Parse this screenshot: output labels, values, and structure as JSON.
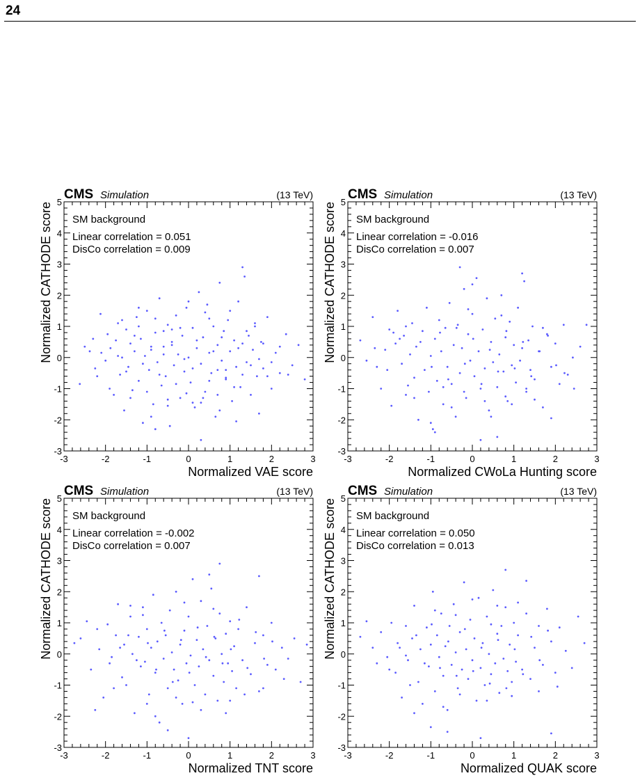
{
  "page_number": "24",
  "chart_data": [
    {
      "type": "scatter",
      "experiment": "CMS",
      "label": "Simulation",
      "energy": "(13 TeV)",
      "sample": "SM background",
      "annotations": [
        "Linear correlation = 0.051",
        "DisCo correlation = 0.009"
      ],
      "xlabel": "Normalized VAE score",
      "ylabel": "Normalized CATHODE score",
      "xlim": [
        -3,
        3
      ],
      "ylim": [
        -3,
        5
      ],
      "x_ticks": [
        "-3",
        "-2",
        "-1",
        "0",
        "1",
        "2",
        "3"
      ],
      "y_ticks": [
        "-3",
        "-2",
        "-1",
        "0",
        "1",
        "2",
        "3",
        "4",
        "5"
      ],
      "marker_color": "#5a5aff",
      "x": [
        -2.62,
        -2.5,
        -2.38,
        -2.25,
        -2.12,
        -2.0,
        -1.95,
        -1.88,
        -1.8,
        -1.75,
        -1.7,
        -1.65,
        -1.6,
        -1.55,
        -1.5,
        -1.45,
        -1.4,
        -1.35,
        -1.3,
        -1.25,
        -1.2,
        -1.15,
        -1.1,
        -1.05,
        -1.0,
        -0.95,
        -0.9,
        -0.85,
        -0.8,
        -0.75,
        -0.7,
        -0.65,
        -0.6,
        -0.55,
        -0.5,
        -0.45,
        -0.4,
        -0.35,
        -0.3,
        -0.25,
        -0.2,
        -0.15,
        -0.1,
        -0.05,
        0.0,
        0.05,
        0.1,
        0.15,
        0.2,
        0.25,
        0.3,
        0.35,
        0.4,
        0.45,
        0.5,
        0.55,
        0.6,
        0.65,
        0.7,
        0.75,
        0.8,
        0.85,
        0.9,
        0.95,
        1.0,
        1.05,
        1.1,
        1.15,
        1.2,
        1.25,
        1.3,
        1.35,
        1.4,
        1.45,
        1.5,
        1.55,
        1.6,
        1.65,
        1.7,
        1.75,
        1.8,
        1.9,
        2.0,
        2.1,
        2.2,
        2.35,
        2.5,
        2.65,
        2.8,
        -1.2,
        -0.8,
        -0.4,
        0.1,
        0.5,
        0.9,
        1.3,
        -0.6,
        0.3,
        0.7
      ],
      "y": [
        -0.85,
        0.35,
        0.2,
        -0.35,
        1.4,
        -0.1,
        0.75,
        0.3,
        -1.2,
        0.55,
        1.1,
        -0.55,
        0.0,
        -1.7,
        0.9,
        -0.3,
        0.45,
        -1.05,
        0.2,
        1.3,
        -0.75,
        0.6,
        -2.1,
        0.05,
        1.5,
        -0.4,
        0.25,
        -1.5,
        0.8,
        -0.15,
        1.9,
        -0.9,
        0.35,
        -0.6,
        1.05,
        -2.2,
        0.5,
        -0.25,
        1.35,
        0.1,
        -1.3,
        0.7,
        -0.45,
        1.6,
        0.0,
        -0.8,
        0.95,
        -1.6,
        0.3,
        2.1,
        -0.2,
        0.65,
        -1.1,
        1.7,
        0.15,
        -0.5,
        1.0,
        -1.9,
        0.4,
        2.4,
        -0.1,
        0.85,
        -0.7,
        1.2,
        0.2,
        -1.4,
        0.55,
        -0.3,
        1.8,
        -0.95,
        0.45,
        2.6,
        -0.15,
        0.7,
        -1.2,
        0.25,
        1.1,
        -0.6,
        -1.8,
        0.5,
        -0.35,
        1.3,
        -1.0,
        0.15,
        -0.5,
        0.75,
        -0.25,
        0.4,
        -0.7,
        1.6,
        -2.3,
        0.9,
        -1.45,
        1.25,
        -0.65,
        2.9,
        0.1,
        -2.65,
        -0.4
      ],
      "x_more": [
        -2.3,
        -2.2,
        -2.1,
        -1.9,
        -1.7,
        -1.6,
        -1.5,
        -1.4,
        -1.3,
        -1.2,
        -1.1,
        -1.0,
        -0.9,
        -0.8,
        -0.7,
        -0.6,
        -0.5,
        -0.4,
        -0.3,
        -0.2,
        -0.1,
        0.0,
        0.1,
        0.2,
        0.3,
        0.4,
        0.5,
        0.6,
        0.7,
        0.8,
        0.9,
        1.0,
        1.1,
        1.2,
        1.3,
        1.4,
        1.5,
        1.6,
        1.7,
        1.8,
        1.9,
        2.0,
        2.2,
        2.4,
        -0.9,
        -0.5,
        -0.05,
        0.35,
        0.75,
        1.15
      ],
      "y_more": [
        0.6,
        -0.6,
        0.15,
        -1.0,
        0.05,
        1.2,
        -0.45,
        -1.3,
        0.7,
        1.0,
        -0.2,
        -1.1,
        0.35,
        1.25,
        -0.55,
        0.85,
        -1.35,
        0.4,
        -0.85,
        0.95,
        -0.05,
        1.8,
        -0.35,
        0.55,
        -1.45,
        1.45,
        -0.75,
        0.2,
        -1.2,
        0.65,
        -0.4,
        1.5,
        -0.95,
        0.3,
        -0.55,
        0.85,
        -0.25,
        1.0,
        -0.05,
        0.45,
        -0.6,
        -0.15,
        0.35,
        -0.55,
        -1.9,
        -1.55,
        -1.15,
        -1.3,
        -1.7,
        -2.05
      ]
    },
    {
      "type": "scatter",
      "experiment": "CMS",
      "label": "Simulation",
      "energy": "(13 TeV)",
      "sample": "SM background",
      "annotations": [
        "Linear correlation = -0.016",
        "DisCo correlation = 0.007"
      ],
      "xlabel": "Normalized CWoLa Hunting score",
      "ylabel": "Normalized CATHODE score",
      "xlim": [
        -3,
        3
      ],
      "ylim": [
        -3,
        5
      ],
      "x_ticks": [
        "-3",
        "-2",
        "-1",
        "0",
        "1",
        "2",
        "3"
      ],
      "y_ticks": [
        "-3",
        "-2",
        "-1",
        "0",
        "1",
        "2",
        "3",
        "4",
        "5"
      ],
      "marker_color": "#5a5aff",
      "x": [
        -2.7,
        -2.55,
        -2.4,
        -2.3,
        -2.2,
        -2.1,
        -2.0,
        -1.95,
        -1.85,
        -1.8,
        -1.7,
        -1.65,
        -1.6,
        -1.5,
        -1.45,
        -1.4,
        -1.35,
        -1.3,
        -1.2,
        -1.15,
        -1.1,
        -1.05,
        -1.0,
        -0.95,
        -0.9,
        -0.85,
        -0.8,
        -0.75,
        -0.7,
        -0.65,
        -0.6,
        -0.55,
        -0.5,
        -0.45,
        -0.4,
        -0.35,
        -0.3,
        -0.25,
        -0.2,
        -0.15,
        -0.1,
        -0.05,
        0.0,
        0.05,
        0.1,
        0.15,
        0.2,
        0.25,
        0.3,
        0.35,
        0.4,
        0.45,
        0.5,
        0.55,
        0.6,
        0.65,
        0.7,
        0.75,
        0.8,
        0.85,
        0.9,
        0.95,
        1.0,
        1.05,
        1.1,
        1.15,
        1.2,
        1.25,
        1.3,
        1.35,
        1.4,
        1.45,
        1.5,
        1.6,
        1.7,
        1.8,
        1.9,
        2.0,
        2.1,
        2.2,
        2.3,
        2.45,
        2.6,
        2.75,
        -0.3,
        0.0,
        0.2,
        -0.9,
        0.6,
        1.2
      ],
      "y": [
        0.55,
        -0.1,
        1.3,
        -0.3,
        -1.0,
        0.25,
        0.9,
        -1.55,
        0.45,
        1.5,
        -0.2,
        0.7,
        -1.2,
        0.1,
        1.1,
        -0.65,
        0.35,
        -2.0,
        0.85,
        -0.4,
        1.6,
        -1.1,
        0.05,
        -2.3,
        0.6,
        -0.75,
        1.2,
        0.2,
        -1.5,
        0.95,
        -0.3,
        1.75,
        -0.85,
        0.4,
        -1.9,
        1.05,
        -0.5,
        0.3,
        2.2,
        -1.3,
        0.75,
        -0.1,
        1.4,
        -0.6,
        2.55,
        0.2,
        -1.0,
        0.9,
        -0.35,
        1.9,
        -1.7,
        0.5,
        -0.15,
        1.25,
        -0.95,
        0.1,
        2.0,
        -0.45,
        0.65,
        -1.4,
        1.15,
        -0.25,
        0.4,
        -0.8,
        1.6,
        -0.1,
        0.3,
        2.45,
        -1.1,
        0.55,
        -0.4,
        1.0,
        -0.7,
        0.2,
        -1.6,
        0.75,
        -0.3,
        0.45,
        -0.85,
        1.05,
        -0.55,
        -1.0,
        0.35,
        1.05,
        2.9,
        2.35,
        -2.65,
        -2.4,
        -2.55,
        2.7
      ],
      "x_more": [
        -2.35,
        -2.05,
        -1.75,
        -1.55,
        -1.25,
        -0.98,
        -0.78,
        -0.58,
        -0.38,
        -0.18,
        0.02,
        0.22,
        0.42,
        0.62,
        0.82,
        1.02,
        1.22,
        1.42,
        1.62,
        1.82,
        2.02,
        2.22,
        2.42,
        -1.9,
        -1.4,
        -0.7,
        -0.2,
        0.3,
        0.8,
        1.3,
        1.9,
        -1.0,
        -0.5,
        0.45,
        0.95,
        1.5,
        -1.6,
        -0.1,
        0.7,
        1.7
      ],
      "y_more": [
        0.3,
        -0.4,
        0.6,
        -0.9,
        0.5,
        -0.3,
        0.8,
        -0.7,
        0.95,
        -0.2,
        0.6,
        -0.85,
        0.25,
        -0.45,
        0.85,
        -0.35,
        0.5,
        -0.6,
        0.2,
        0.7,
        -0.25,
        -0.5,
        0.0,
        0.8,
        -1.3,
        -0.95,
        -1.1,
        -1.4,
        -1.25,
        -1.0,
        -1.95,
        -2.1,
        -1.6,
        -1.9,
        -1.5,
        -1.35,
        1.0,
        1.55,
        1.35,
        0.95
      ]
    },
    {
      "type": "scatter",
      "experiment": "CMS",
      "label": "Simulation",
      "energy": "(13 TeV)",
      "sample": "SM background",
      "annotations": [
        "Linear correlation = -0.002",
        "DisCo correlation = 0.007"
      ],
      "xlabel": "Normalized TNT score",
      "ylabel": "Normalized CATHODE score",
      "xlim": [
        -3,
        3
      ],
      "ylim": [
        -3,
        5
      ],
      "x_ticks": [
        "-3",
        "-2",
        "-1",
        "0",
        "1",
        "2",
        "3"
      ],
      "y_ticks": [
        "-3",
        "-2",
        "-1",
        "0",
        "1",
        "2",
        "3",
        "4",
        "5"
      ],
      "marker_color": "#5a5aff",
      "x": [
        -2.75,
        -2.6,
        -2.45,
        -2.35,
        -2.25,
        -2.15,
        -2.05,
        -1.95,
        -1.85,
        -1.75,
        -1.7,
        -1.6,
        -1.55,
        -1.5,
        -1.4,
        -1.35,
        -1.3,
        -1.2,
        -1.15,
        -1.1,
        -1.05,
        -1.0,
        -0.95,
        -0.9,
        -0.85,
        -0.8,
        -0.75,
        -0.7,
        -0.65,
        -0.6,
        -0.55,
        -0.5,
        -0.45,
        -0.4,
        -0.35,
        -0.3,
        -0.25,
        -0.2,
        -0.15,
        -0.1,
        -0.05,
        0.0,
        0.05,
        0.1,
        0.15,
        0.2,
        0.25,
        0.3,
        0.35,
        0.4,
        0.45,
        0.5,
        0.55,
        0.6,
        0.65,
        0.7,
        0.75,
        0.8,
        0.85,
        0.9,
        0.95,
        1.0,
        1.05,
        1.1,
        1.15,
        1.2,
        1.3,
        1.4,
        1.5,
        1.6,
        1.7,
        1.8,
        1.9,
        2.0,
        2.1,
        2.25,
        2.4,
        2.55,
        2.7,
        2.85,
        -0.5,
        0.0,
        0.5,
        0.75,
        -1.4,
        1.7
      ],
      "y": [
        0.35,
        0.5,
        1.05,
        -0.5,
        -1.8,
        0.15,
        -1.4,
        0.95,
        -0.1,
        0.6,
        1.6,
        -0.75,
        0.3,
        -1.0,
        1.2,
        0.0,
        -1.9,
        0.55,
        -0.4,
        1.5,
        -0.25,
        0.8,
        -1.3,
        0.2,
        1.9,
        -0.6,
        0.4,
        -2.2,
        1.0,
        -0.15,
        0.6,
        -1.1,
        1.4,
        0.05,
        -0.5,
        2.0,
        -0.85,
        0.3,
        -1.6,
        0.75,
        -0.3,
        1.2,
        -0.05,
        2.4,
        -1.0,
        0.45,
        -0.4,
        1.7,
        0.15,
        -1.3,
        0.9,
        -0.2,
        2.1,
        -0.7,
        0.5,
        -1.5,
        1.3,
        0.0,
        -0.9,
        0.65,
        -0.3,
        1.05,
        -0.55,
        0.25,
        -1.1,
        0.8,
        -0.2,
        1.5,
        -0.65,
        0.35,
        -1.2,
        0.6,
        -0.35,
        1.0,
        -0.5,
        0.2,
        -0.15,
        0.5,
        -0.9,
        0.3,
        -2.45,
        -2.7,
        2.55,
        2.9,
        1.55,
        2.5
      ],
      "x_more": [
        -2.2,
        -1.9,
        -1.65,
        -1.45,
        -1.25,
        -0.98,
        -0.78,
        -0.58,
        -0.38,
        -0.18,
        0.02,
        0.22,
        0.42,
        0.62,
        0.82,
        1.02,
        1.22,
        1.42,
        1.62,
        1.82,
        2.02,
        2.3,
        -1.8,
        -1.0,
        -0.3,
        0.3,
        1.0,
        1.8,
        -0.8,
        0.1,
        0.9,
        1.35,
        -1.1,
        -0.1,
        0.6
      ],
      "y_more": [
        0.8,
        -0.3,
        0.2,
        0.6,
        -0.2,
        0.35,
        -0.5,
        0.75,
        -0.9,
        0.45,
        -0.6,
        0.85,
        -0.1,
        0.55,
        -0.3,
        0.15,
        1.1,
        -0.45,
        0.7,
        -0.15,
        0.4,
        -0.8,
        -1.1,
        -1.6,
        -1.4,
        -1.8,
        -1.5,
        -1.1,
        -2.0,
        -1.55,
        -1.9,
        -1.3,
        1.25,
        1.65,
        1.45
      ]
    },
    {
      "type": "scatter",
      "experiment": "CMS",
      "label": "Simulation",
      "energy": "(13 TeV)",
      "sample": "SM background",
      "annotations": [
        "Linear correlation = 0.050",
        "DisCo correlation = 0.013"
      ],
      "xlabel": "Normalized QUAK score",
      "ylabel": "Normalized CATHODE score",
      "xlim": [
        -3,
        3
      ],
      "ylim": [
        -3,
        5
      ],
      "x_ticks": [
        "-3",
        "-2",
        "-1",
        "0",
        "1",
        "2",
        "3"
      ],
      "y_ticks": [
        "-3",
        "-2",
        "-1",
        "0",
        "1",
        "2",
        "3",
        "4",
        "5"
      ],
      "marker_color": "#5a5aff",
      "x": [
        -2.7,
        -2.55,
        -2.4,
        -2.3,
        -2.2,
        -2.05,
        -1.95,
        -1.85,
        -1.8,
        -1.7,
        -1.6,
        -1.55,
        -1.45,
        -1.4,
        -1.3,
        -1.25,
        -1.2,
        -1.1,
        -1.05,
        -1.0,
        -0.95,
        -0.9,
        -0.85,
        -0.8,
        -0.75,
        -0.7,
        -0.65,
        -0.6,
        -0.55,
        -0.5,
        -0.45,
        -0.4,
        -0.35,
        -0.3,
        -0.25,
        -0.2,
        -0.15,
        -0.1,
        -0.05,
        0.0,
        0.05,
        0.1,
        0.15,
        0.2,
        0.25,
        0.3,
        0.35,
        0.4,
        0.45,
        0.5,
        0.55,
        0.6,
        0.65,
        0.7,
        0.75,
        0.8,
        0.85,
        0.9,
        0.95,
        1.0,
        1.05,
        1.1,
        1.2,
        1.3,
        1.4,
        1.5,
        1.6,
        1.7,
        1.8,
        1.9,
        2.0,
        2.1,
        2.25,
        2.4,
        2.55,
        2.7,
        -1.0,
        -0.6,
        0.2,
        0.8,
        1.3,
        1.9
      ],
      "y": [
        0.55,
        1.05,
        0.2,
        -0.3,
        0.7,
        -0.1,
        1.0,
        -0.6,
        0.35,
        -1.4,
        0.9,
        -0.2,
        0.5,
        1.55,
        -0.9,
        0.15,
        -1.6,
        0.85,
        -0.4,
        0.3,
        2.0,
        -1.2,
        0.6,
        -0.1,
        1.3,
        -0.7,
        0.25,
        -1.8,
        0.9,
        -0.35,
        1.6,
        0.05,
        -1.1,
        0.7,
        -0.5,
        2.3,
        0.15,
        -0.8,
        1.1,
        -0.2,
        0.5,
        -1.5,
        1.8,
        -0.45,
        0.35,
        -1.0,
        1.2,
        0.0,
        -0.65,
        2.05,
        -0.3,
        0.65,
        -1.25,
        0.9,
        -0.15,
        1.5,
        -0.55,
        0.3,
        -0.9,
        1.0,
        -0.25,
        0.6,
        -0.5,
        1.3,
        -0.8,
        0.2,
        0.9,
        -0.35,
        1.45,
        0.4,
        -0.6,
        0.85,
        0.1,
        -0.45,
        1.2,
        0.35,
        -2.35,
        -2.5,
        -2.7,
        2.7,
        2.35,
        -2.55
      ],
      "x_more": [
        -2.0,
        -1.75,
        -1.5,
        -1.35,
        -1.15,
        -0.98,
        -0.78,
        -0.58,
        -0.38,
        -0.18,
        0.02,
        0.22,
        0.42,
        0.62,
        0.82,
        1.02,
        1.22,
        1.42,
        1.62,
        1.82,
        2.05,
        -1.4,
        -0.7,
        -0.3,
        0.35,
        0.95,
        1.6,
        -0.9,
        0.0,
        0.6,
        1.1,
        -1.6,
        -0.4,
        0.45
      ],
      "y_more": [
        -0.5,
        0.2,
        -1.0,
        0.6,
        -0.3,
        0.95,
        -0.45,
        0.4,
        -0.7,
        0.8,
        -0.55,
        0.2,
        -0.95,
        0.45,
        -1.1,
        0.15,
        -0.65,
        0.55,
        -0.2,
        0.75,
        -1.05,
        -1.9,
        -1.7,
        -1.3,
        -1.5,
        -1.35,
        -1.2,
        1.4,
        1.75,
        1.55,
        1.65,
        -0.05,
        1.25,
        0.95
      ]
    }
  ]
}
